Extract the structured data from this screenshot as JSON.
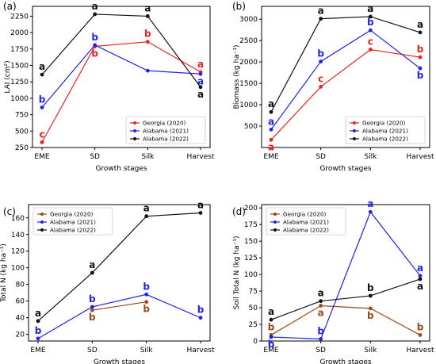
{
  "categories": [
    "EME",
    "SD",
    "Silk",
    "Harvest"
  ],
  "xlabel": "Growth stages",
  "colors": {
    "georgia_2020_top": "#ee2222",
    "georgia_2020_bottom": "#9a4a1c",
    "alabama_2021": "#2222ee",
    "alabama_2022": "#111111"
  },
  "chart_data": [
    {
      "type": "line",
      "panel_label": "(a)",
      "ylabel": "LAI (cm²)",
      "ylim": [
        250,
        2400
      ],
      "yticks": [
        250,
        500,
        750,
        1000,
        1250,
        1500,
        1750,
        2000,
        2250
      ],
      "categories": [
        "EME",
        "SD",
        "Silk",
        "Harvest"
      ],
      "grid": false,
      "legend_position": "bottom-right",
      "series": [
        {
          "name": "Georgia (2020)",
          "color": "#ee2222",
          "values": [
            330,
            1790,
            1860,
            1400
          ],
          "letters": [
            "c",
            "b",
            "b",
            "a"
          ],
          "letter_pos": [
            "above",
            "below",
            "above",
            "above"
          ]
        },
        {
          "name": "Alabama (2021)",
          "color": "#2222ee",
          "values": [
            860,
            1810,
            1420,
            1370
          ],
          "letters": [
            "b",
            "b",
            "",
            "a"
          ],
          "letter_pos": [
            "above",
            "above",
            "above",
            "below"
          ]
        },
        {
          "name": "Alabama (2022)",
          "color": "#111111",
          "values": [
            1360,
            2280,
            2250,
            1170
          ],
          "letters": [
            "a",
            "a",
            "a",
            "a"
          ],
          "letter_pos": [
            "above",
            "above",
            "above",
            "below"
          ]
        }
      ]
    },
    {
      "type": "line",
      "panel_label": "(b)",
      "ylabel": "Biomass (kg ha⁻¹)",
      "ylim": [
        0,
        3300
      ],
      "yticks": [
        500,
        1000,
        1500,
        2000,
        2500,
        3000
      ],
      "categories": [
        "EME",
        "SD",
        "Silk",
        "Harvest"
      ],
      "grid": false,
      "legend_position": "bottom-right",
      "series": [
        {
          "name": "Georgia (2020)",
          "color": "#ee2222",
          "values": [
            180,
            1420,
            2290,
            2110
          ],
          "letters": [
            "a",
            "c",
            "c",
            "b"
          ],
          "letter_pos": [
            "below",
            "above",
            "above",
            "above"
          ]
        },
        {
          "name": "Alabama (2021)",
          "color": "#2222ee",
          "values": [
            420,
            2010,
            2740,
            1850
          ],
          "letters": [
            "a",
            "b",
            "b",
            "b"
          ],
          "letter_pos": [
            "above",
            "above",
            "above",
            "below"
          ]
        },
        {
          "name": "Alabama (2022)",
          "color": "#111111",
          "values": [
            830,
            3010,
            3060,
            2690
          ],
          "letters": [
            "a",
            "a",
            "a",
            "a"
          ],
          "letter_pos": [
            "above",
            "above",
            "above",
            "above"
          ]
        }
      ]
    },
    {
      "type": "line",
      "panel_label": "(c)",
      "ylabel": "Total N (kg ha⁻¹)",
      "ylim": [
        12,
        176
      ],
      "yticks": [
        20,
        40,
        60,
        80,
        100,
        120,
        140,
        160
      ],
      "categories": [
        "EME",
        "SD",
        "Silk",
        "Harvest"
      ],
      "grid": false,
      "legend_position": "top-left",
      "series": [
        {
          "name": "Georgia (2020)",
          "color": "#9a4a1c",
          "values": [
            null,
            49,
            59,
            null
          ],
          "letters": [
            "",
            "b",
            "b",
            ""
          ],
          "letter_pos": [
            "below",
            "below",
            "below",
            "below"
          ]
        },
        {
          "name": "Alabama (2021)",
          "color": "#2222ee",
          "values": [
            15,
            53,
            68,
            40
          ],
          "letters": [
            "b",
            "b",
            "b",
            "b"
          ],
          "letter_pos": [
            "above",
            "above",
            "above",
            "above"
          ]
        },
        {
          "name": "Alabama (2022)",
          "color": "#111111",
          "values": [
            36,
            94,
            162,
            166
          ],
          "letters": [
            "a",
            "a",
            "a",
            "a"
          ],
          "letter_pos": [
            "above",
            "above",
            "above",
            "above"
          ]
        }
      ]
    },
    {
      "type": "line",
      "panel_label": "(d)",
      "ylabel": "Soil Total N (kg ha⁻¹)",
      "ylim": [
        0,
        205
      ],
      "yticks": [
        0,
        25,
        50,
        75,
        100,
        125,
        150,
        175,
        200
      ],
      "categories": [
        "EME",
        "SD",
        "Silk",
        "Harvest"
      ],
      "grid": false,
      "legend_position": "top-left",
      "series": [
        {
          "name": "Georgia (2020)",
          "color": "#9a4a1c",
          "values": [
            9,
            53,
            49,
            9
          ],
          "letters": [
            "b",
            "a",
            "b",
            "b"
          ],
          "letter_pos": [
            "above",
            "below",
            "below",
            "above"
          ]
        },
        {
          "name": "Alabama (2021)",
          "color": "#2222ee",
          "values": [
            6,
            3,
            194,
            98
          ],
          "letters": [
            "b",
            "b",
            "a",
            "a"
          ],
          "letter_pos": [
            "below",
            "above",
            "above",
            "above"
          ]
        },
        {
          "name": "Alabama (2022)",
          "color": "#111111",
          "values": [
            32,
            60,
            68,
            93
          ],
          "letters": [
            "a",
            "a",
            "b",
            "a"
          ],
          "letter_pos": [
            "above",
            "above",
            "above",
            "below"
          ]
        }
      ]
    }
  ]
}
